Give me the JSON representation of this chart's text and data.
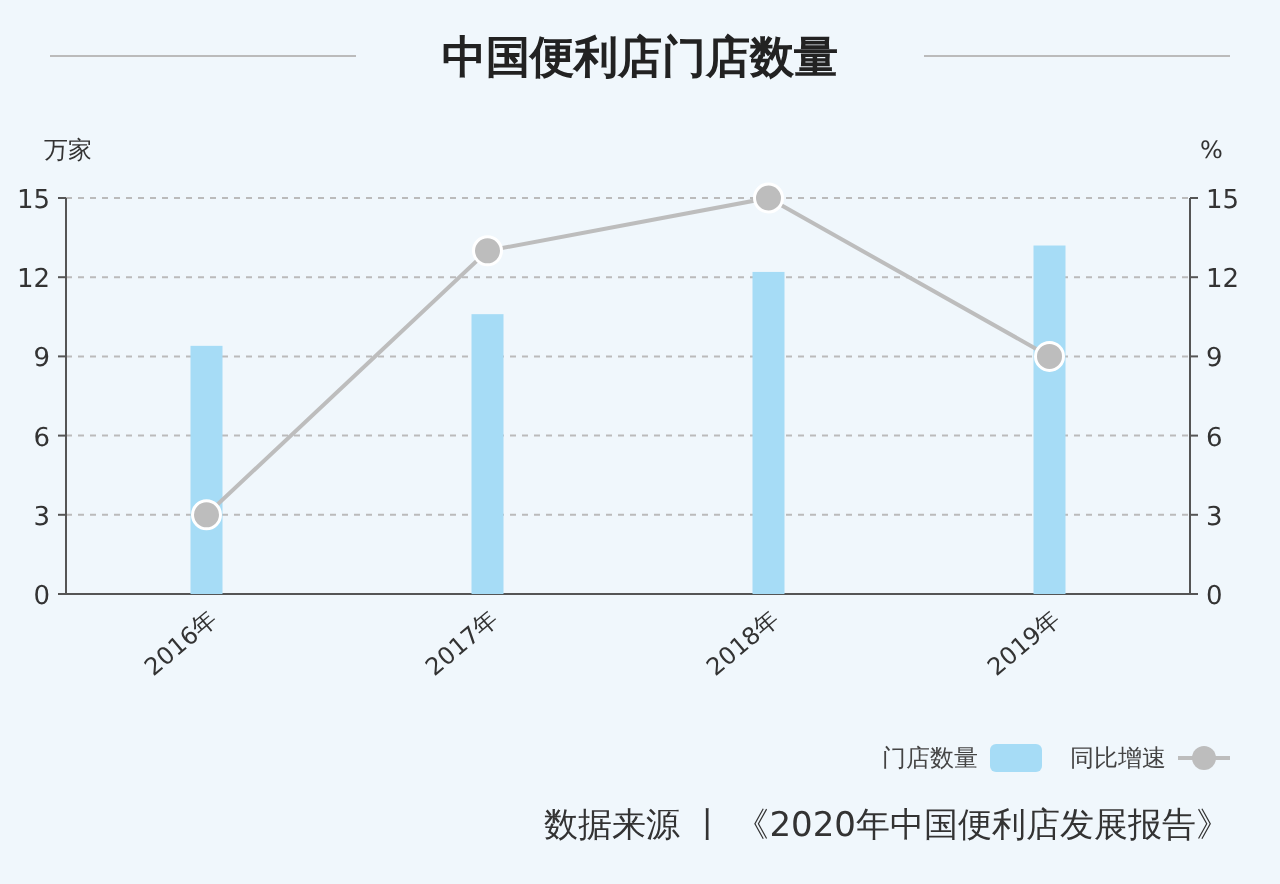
{
  "chart_data": {
    "type": "bar",
    "title": "中国便利店门店数量",
    "categories": [
      "2016年",
      "2017年",
      "2018年",
      "2019年"
    ],
    "series": [
      {
        "name": "门店数量",
        "color": "#a6dcf6",
        "values": [
          9.4,
          10.6,
          12.2,
          13.2
        ]
      },
      {
        "name": "同比增速",
        "type": "line",
        "axis": "y2",
        "color": "#bdbdbd",
        "values": [
          3,
          13,
          15,
          9
        ]
      }
    ],
    "ylabel": "万家",
    "y2label": "%",
    "ylim": [
      0,
      15
    ],
    "yticks": [
      0,
      3,
      6,
      9,
      12,
      15
    ],
    "y2lim": [
      0,
      15
    ],
    "y2ticks": [
      0,
      3,
      6,
      9,
      12,
      15
    ],
    "grid": "y",
    "legend": "bottom right",
    "marker": "circle",
    "annotations": [
      "数据来源 丨 《2020年中国便利店发展报告》"
    ]
  }
}
